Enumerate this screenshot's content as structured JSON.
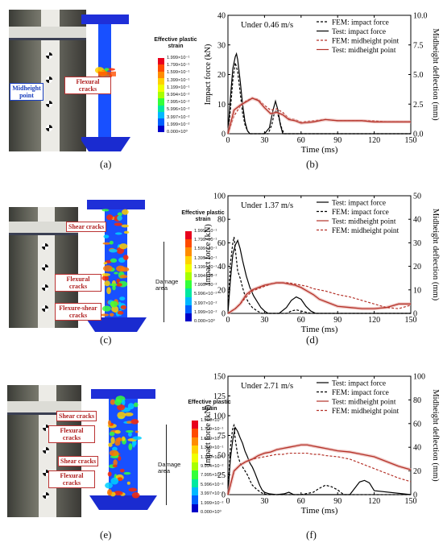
{
  "panels": [
    {
      "letter": "(a)",
      "cracks": [
        "Flexural cracks"
      ],
      "midheight": "Midheight point",
      "cbar_title": "Effective plastic strain",
      "damage": ""
    },
    {
      "letter": "(c)",
      "cracks": [
        "Shear cracks",
        "Flexural cracks",
        "Flexure-shear cracks"
      ],
      "midheight": "",
      "cbar_title": "Effective plastic strain",
      "damage": "Damage area"
    },
    {
      "letter": "(e)",
      "cracks": [
        "Shear cracks",
        "Flexural cracks",
        "Shear cracks",
        "Flexural cracks"
      ],
      "midheight": "",
      "cbar_title": "Effective plastic strain",
      "damage": "Damage area"
    }
  ],
  "colorbar_ticks": [
    "1.999×10⁻¹",
    "1.799×10⁻¹",
    "1.599×10⁻¹",
    "1.399×10⁻¹",
    "1.199×10⁻¹",
    "9.994×10⁻²",
    "7.995×10⁻²",
    "5.996×10⁻²",
    "3.997×10⁻²",
    "1.999×10⁻²",
    "0.000×10⁰"
  ],
  "colorbar_colors": [
    "#e8001c",
    "#ff4a00",
    "#ff8c00",
    "#ffd200",
    "#f0ff00",
    "#a8ff00",
    "#34ff3a",
    "#00e8a0",
    "#00b8ff",
    "#0060ff",
    "#0000c8"
  ],
  "chart_data": [
    {
      "type": "line",
      "letter": "(b)",
      "annotation": "Under 0.46 m/s",
      "xlabel": "Time (ms)",
      "ylabel": "Impact force (kN)",
      "y2label": "Midheight deflection (mm)",
      "xlim": [
        0,
        150
      ],
      "ylim": [
        0,
        40
      ],
      "y2lim": [
        0,
        10
      ],
      "xticks": [
        0,
        30,
        60,
        90,
        120,
        150
      ],
      "yticks": [
        0,
        10,
        20,
        30,
        40
      ],
      "y2ticks": [
        "0.0",
        "2.5",
        "5.0",
        "7.5",
        "10.0"
      ],
      "series": [
        {
          "name": "FEM: impact force",
          "axis": "left",
          "style": "dash-black",
          "x": [
            0,
            2,
            4,
            6,
            8,
            10,
            12,
            14,
            16,
            18,
            20,
            25,
            30,
            33,
            36,
            38,
            40,
            42,
            44,
            46,
            50,
            150
          ],
          "y": [
            0,
            8,
            18,
            24,
            21,
            14,
            7,
            3,
            1,
            0,
            0,
            0,
            0,
            0,
            3,
            7,
            8,
            5,
            2,
            0,
            0,
            0
          ]
        },
        {
          "name": "Test: impact force",
          "axis": "left",
          "style": "solid-black",
          "x": [
            0,
            2,
            4,
            6,
            7,
            8,
            10,
            12,
            14,
            16,
            18,
            20,
            25,
            30,
            34,
            37,
            39,
            41,
            43,
            45,
            47,
            150
          ],
          "y": [
            0,
            12,
            22,
            26,
            27,
            25,
            18,
            10,
            4,
            1,
            0,
            0,
            0,
            0,
            2,
            8,
            11,
            8,
            3,
            0,
            0,
            0
          ]
        },
        {
          "name": "FEM: midheight point",
          "axis": "right",
          "style": "dash-red",
          "x": [
            0,
            5,
            10,
            15,
            20,
            25,
            30,
            35,
            40,
            45,
            50,
            55,
            60,
            70,
            80,
            90,
            100,
            110,
            120,
            130,
            140,
            150
          ],
          "y": [
            0,
            1.5,
            2.3,
            2.8,
            3.0,
            2.9,
            2.4,
            2.0,
            2.1,
            1.8,
            1.3,
            1.2,
            1.0,
            1.1,
            1.2,
            1.1,
            1.1,
            1.1,
            1.1,
            1.0,
            1.0,
            1.0
          ]
        },
        {
          "name": "Test: midheight point",
          "axis": "right",
          "style": "solid-red",
          "x": [
            0,
            5,
            10,
            15,
            20,
            25,
            30,
            35,
            40,
            45,
            50,
            55,
            60,
            70,
            80,
            90,
            100,
            110,
            120,
            130,
            140,
            150
          ],
          "y": [
            0,
            2.0,
            2.4,
            2.7,
            3.0,
            2.8,
            2.2,
            1.7,
            1.8,
            1.6,
            1.2,
            1.1,
            0.9,
            1.0,
            1.2,
            1.1,
            1.1,
            1.1,
            1.0,
            1.0,
            1.0,
            1.0
          ]
        }
      ]
    },
    {
      "type": "line",
      "letter": "(d)",
      "annotation": "Under 1.37 m/s",
      "xlabel": "Time (ms)",
      "ylabel": "Impact force (kN)",
      "y2label": "Midheight deflection (mm)",
      "xlim": [
        0,
        150
      ],
      "ylim": [
        0,
        100
      ],
      "y2lim": [
        0,
        50
      ],
      "xticks": [
        0,
        30,
        60,
        90,
        120,
        150
      ],
      "yticks": [
        0,
        20,
        40,
        60,
        80,
        100
      ],
      "y2ticks": [
        "0",
        "10",
        "20",
        "30",
        "40",
        "50"
      ],
      "series": [
        {
          "name": "Test: impact force",
          "axis": "left",
          "style": "solid-black",
          "x": [
            0,
            2,
            4,
            6,
            8,
            10,
            12,
            15,
            18,
            21,
            24,
            27,
            30,
            33,
            36,
            42,
            48,
            52,
            56,
            60,
            64,
            68,
            72,
            150
          ],
          "y": [
            0,
            28,
            50,
            58,
            62,
            55,
            45,
            32,
            22,
            15,
            10,
            5,
            2,
            0,
            0,
            0,
            5,
            11,
            14,
            12,
            6,
            2,
            0,
            0
          ]
        },
        {
          "name": "FEM: impact force",
          "axis": "left",
          "style": "dash-black",
          "x": [
            0,
            2,
            4,
            5,
            6,
            8,
            10,
            12,
            14,
            17,
            20,
            24,
            28,
            32,
            36,
            48,
            52,
            56,
            60,
            64,
            68,
            150
          ],
          "y": [
            0,
            42,
            60,
            65,
            55,
            36,
            30,
            22,
            15,
            9,
            5,
            2,
            0,
            0,
            0,
            0,
            2,
            3,
            2,
            1,
            0,
            0
          ]
        },
        {
          "name": "Test: midheight point",
          "axis": "right",
          "style": "solid-red",
          "x": [
            0,
            6,
            10,
            15,
            20,
            25,
            30,
            35,
            40,
            45,
            50,
            55,
            60,
            65,
            70,
            75,
            80,
            90,
            100,
            110,
            120,
            130,
            140,
            150
          ],
          "y": [
            0,
            2,
            4,
            8,
            10,
            11,
            12,
            12.5,
            13,
            13,
            12.5,
            12,
            11,
            9.5,
            8,
            6,
            5,
            3,
            2.5,
            2,
            2,
            2.5,
            4,
            4
          ]
        },
        {
          "name": "FEM: midheight point",
          "axis": "right",
          "style": "dash-red",
          "x": [
            0,
            6,
            10,
            15,
            20,
            25,
            30,
            35,
            40,
            45,
            50,
            55,
            60,
            65,
            70,
            75,
            80,
            90,
            100,
            110,
            120,
            130,
            140,
            150
          ],
          "y": [
            0,
            2,
            4,
            7,
            9.5,
            10.5,
            11.5,
            12.5,
            13,
            13,
            13,
            12.5,
            12,
            11.5,
            10.5,
            10,
            9.5,
            8,
            7,
            5.5,
            4,
            2.5,
            2,
            3.5
          ]
        }
      ]
    },
    {
      "type": "line",
      "letter": "(f)",
      "annotation": "Under 2.71 m/s",
      "xlabel": "Time (ms)",
      "ylabel": "Impact force (kN)",
      "y2label": "Midheight deflection (mm)",
      "xlim": [
        0,
        150
      ],
      "ylim": [
        0,
        150
      ],
      "y2lim": [
        0,
        100
      ],
      "xticks": [
        0,
        30,
        60,
        90,
        120,
        150
      ],
      "yticks": [
        0,
        25,
        50,
        75,
        100,
        125,
        150
      ],
      "y2ticks": [
        "0",
        "20",
        "40",
        "60",
        "80",
        "100"
      ],
      "series": [
        {
          "name": "Test: impact force",
          "axis": "left",
          "style": "solid-black",
          "x": [
            0,
            2,
            4,
            6,
            8,
            10,
            12,
            14,
            16,
            18,
            20,
            22,
            24,
            26,
            28,
            30,
            32,
            34,
            40,
            46,
            50,
            54,
            100,
            104,
            108,
            112,
            116,
            120,
            150
          ],
          "y": [
            0,
            45,
            70,
            85,
            80,
            72,
            65,
            55,
            48,
            40,
            35,
            28,
            20,
            12,
            6,
            3,
            2,
            1,
            0,
            1,
            3,
            0,
            0,
            8,
            16,
            18,
            15,
            5,
            0
          ]
        },
        {
          "name": "FEM: impact force",
          "axis": "left",
          "style": "dash-black",
          "x": [
            0,
            2,
            4,
            5,
            6,
            8,
            10,
            12,
            14,
            16,
            18,
            20,
            24,
            28,
            32,
            60,
            70,
            75,
            80,
            85,
            90,
            95,
            150
          ],
          "y": [
            0,
            60,
            85,
            88,
            70,
            50,
            40,
            35,
            30,
            25,
            18,
            12,
            6,
            2,
            0,
            0,
            3,
            8,
            12,
            10,
            6,
            0,
            0
          ]
        },
        {
          "name": "Test: midheight point",
          "axis": "right",
          "style": "solid-red",
          "x": [
            0,
            5,
            10,
            15,
            20,
            25,
            30,
            35,
            40,
            45,
            50,
            55,
            60,
            65,
            70,
            75,
            80,
            90,
            100,
            110,
            120,
            130,
            140,
            150
          ],
          "y": [
            0,
            20,
            25,
            28,
            30,
            33,
            35,
            36,
            38,
            39,
            40,
            41,
            42,
            42,
            41,
            40,
            39,
            37,
            36,
            34,
            32,
            28,
            24,
            21
          ]
        },
        {
          "name": "FEM: midheight point",
          "axis": "right",
          "style": "dash-red",
          "x": [
            0,
            5,
            10,
            15,
            20,
            25,
            30,
            35,
            40,
            45,
            50,
            55,
            60,
            65,
            70,
            75,
            80,
            90,
            100,
            110,
            120,
            130,
            140,
            150
          ],
          "y": [
            0,
            20,
            25,
            28,
            30,
            31,
            32,
            33,
            34,
            34,
            35,
            35,
            35,
            35,
            34,
            34,
            33,
            32,
            30,
            26,
            22,
            18,
            14,
            11
          ]
        }
      ]
    }
  ]
}
